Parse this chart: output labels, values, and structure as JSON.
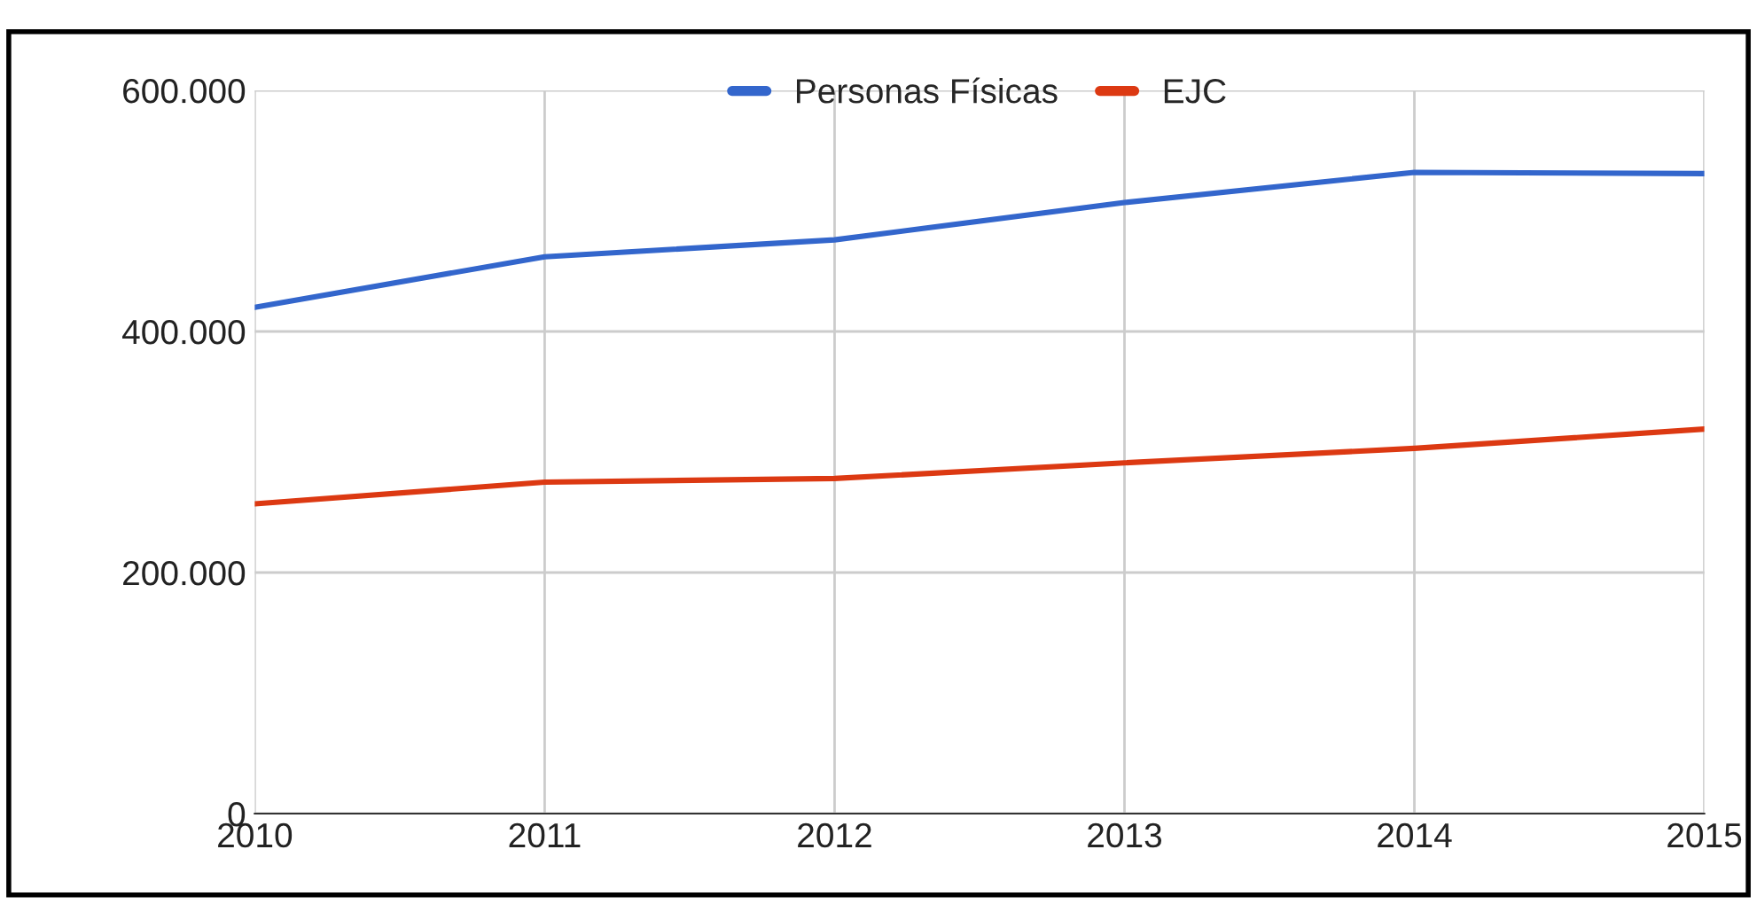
{
  "chart_data": {
    "type": "line",
    "x": [
      2010,
      2011,
      2012,
      2013,
      2014,
      2015
    ],
    "series": [
      {
        "name": "Personas Físicas",
        "color": "#3366cc",
        "values": [
          420000,
          462000,
          476000,
          507000,
          532000,
          531000
        ]
      },
      {
        "name": "EJC",
        "color": "#dc3912",
        "values": [
          257000,
          275000,
          278000,
          291000,
          303000,
          319000
        ]
      }
    ],
    "xlim": [
      2010,
      2015
    ],
    "xticks": [
      2010,
      2011,
      2012,
      2013,
      2014,
      2015
    ],
    "ylim": [
      0,
      600000
    ],
    "yticks": [
      0,
      {
        "value": 200000,
        "label": "200.000"
      },
      {
        "value": 400000,
        "label": "400.000"
      },
      {
        "value": 600000,
        "label": "600.000"
      }
    ],
    "grid": true,
    "legend": "top",
    "marker": "none",
    "line_style": "solid"
  }
}
